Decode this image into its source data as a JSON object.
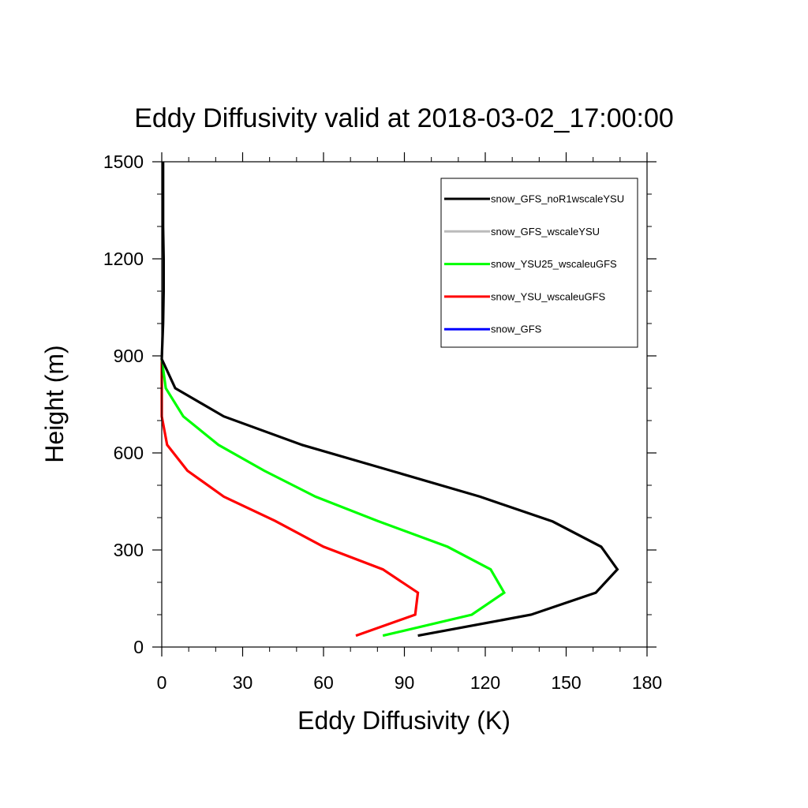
{
  "chart_data": {
    "type": "line",
    "title": "Eddy Diffusivity valid at 2018-03-02_17:00:00",
    "xlabel": "Eddy Diffusivity (K)",
    "ylabel": "Height (m)",
    "xlim": [
      0,
      180
    ],
    "ylim": [
      0,
      1500
    ],
    "xticks": [
      0,
      30,
      60,
      90,
      120,
      150,
      180
    ],
    "yticks": [
      0,
      300,
      600,
      900,
      1200,
      1500
    ],
    "grid": false,
    "legend_position": "top-right",
    "series": [
      {
        "name": "snow_GFS_noR1wscaleYSU",
        "color": "#000000",
        "points": [
          [
            95,
            35
          ],
          [
            137,
            100
          ],
          [
            161,
            168
          ],
          [
            169,
            240
          ],
          [
            163,
            310
          ],
          [
            145,
            388
          ],
          [
            118,
            465
          ],
          [
            85,
            545
          ],
          [
            52,
            625
          ],
          [
            23,
            713
          ],
          [
            5,
            800
          ],
          [
            0,
            890
          ],
          [
            0.5,
            1000
          ],
          [
            0.7,
            1100
          ],
          [
            0.7,
            1200
          ],
          [
            0.5,
            1300
          ],
          [
            0.5,
            1400
          ],
          [
            0.5,
            1500
          ]
        ]
      },
      {
        "name": "snow_GFS_wscaleYSU",
        "color": "#bbbbbb",
        "points": [
          [
            0,
            890
          ],
          [
            0.4,
            1000
          ],
          [
            0.5,
            1100
          ],
          [
            0.5,
            1200
          ],
          [
            0.4,
            1300
          ],
          [
            0.3,
            1400
          ],
          [
            0.3,
            1500
          ]
        ]
      },
      {
        "name": "snow_YSU25_wscaleuGFS",
        "color": "#00ff00",
        "points": [
          [
            82,
            35
          ],
          [
            115,
            100
          ],
          [
            127,
            168
          ],
          [
            122,
            240
          ],
          [
            106,
            310
          ],
          [
            80,
            390
          ],
          [
            57,
            465
          ],
          [
            38,
            545
          ],
          [
            21,
            625
          ],
          [
            8,
            713
          ],
          [
            1.5,
            800
          ],
          [
            0,
            890
          ]
        ]
      },
      {
        "name": "snow_YSU_wscaleuGFS",
        "color": "#ff0000",
        "points": [
          [
            72,
            35
          ],
          [
            94,
            100
          ],
          [
            95,
            168
          ],
          [
            82,
            240
          ],
          [
            60,
            310
          ],
          [
            42,
            390
          ],
          [
            23,
            465
          ],
          [
            9.5,
            545
          ],
          [
            2,
            625
          ],
          [
            0,
            713
          ],
          [
            0,
            890
          ]
        ]
      },
      {
        "name": "snow_GFS",
        "color": "#0000ff",
        "points": []
      }
    ]
  }
}
